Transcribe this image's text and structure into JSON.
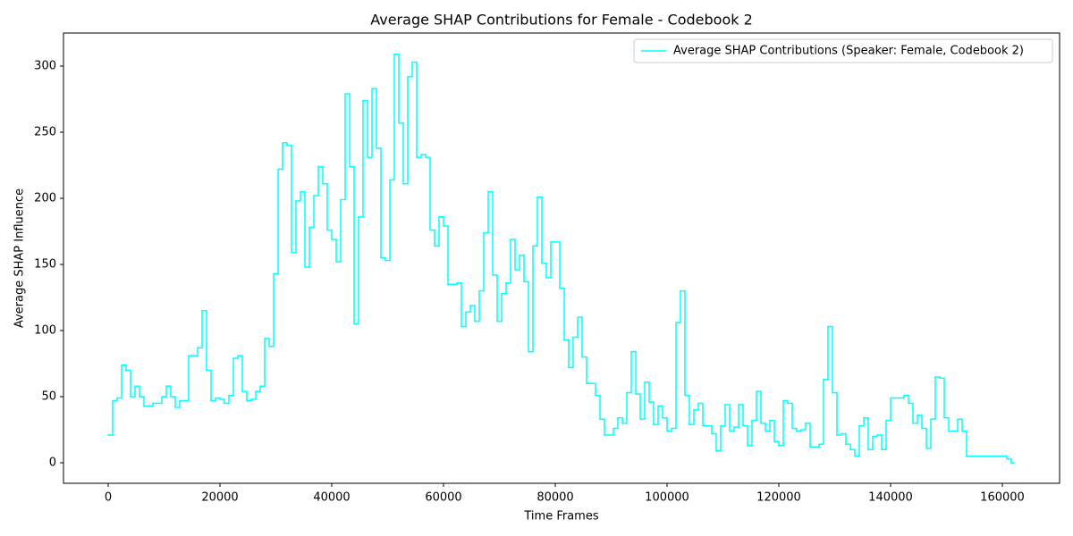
{
  "chart_data": {
    "type": "step",
    "title": "Average SHAP Contributions for Female - Codebook 2",
    "xlabel": "Time Frames",
    "ylabel": "Average SHAP Influence",
    "legend": "upper right",
    "grid": false,
    "xlim": [
      -8000,
      170240
    ],
    "ylim": [
      -15.5,
      325
    ],
    "xticks": [
      0,
      20000,
      40000,
      60000,
      80000,
      100000,
      120000,
      140000,
      160000
    ],
    "yticks": [
      0,
      50,
      100,
      150,
      200,
      250,
      300
    ],
    "series": [
      {
        "name": "Average SHAP Contributions (Speaker: Female, Codebook 2)",
        "color": "#00ffff",
        "x": [
          0,
          800,
          1600,
          2400,
          3200,
          4000,
          4800,
          5600,
          6400,
          8000,
          9600,
          10400,
          11200,
          12000,
          12800,
          14400,
          16000,
          16800,
          17600,
          18400,
          19200,
          20000,
          20800,
          21600,
          22400,
          23200,
          24000,
          24800,
          25600,
          26400,
          27200,
          28000,
          28800,
          29600,
          30400,
          31200,
          32000,
          32800,
          33600,
          34400,
          35200,
          36000,
          36800,
          37600,
          38400,
          39200,
          40000,
          40800,
          41600,
          42400,
          43200,
          44000,
          44800,
          45600,
          46400,
          47200,
          48000,
          48800,
          49600,
          50400,
          51200,
          52000,
          52800,
          53600,
          54400,
          55200,
          56000,
          56800,
          57600,
          58400,
          59200,
          60000,
          60800,
          62400,
          63200,
          64000,
          64800,
          65600,
          66400,
          67200,
          68000,
          68800,
          69600,
          70400,
          71200,
          72000,
          72800,
          73600,
          74400,
          75200,
          76000,
          76800,
          77600,
          78400,
          79200,
          80800,
          81600,
          82400,
          83200,
          84000,
          84800,
          85600,
          87200,
          88000,
          88800,
          90400,
          91200,
          92000,
          92800,
          93600,
          94400,
          95200,
          96000,
          96800,
          97600,
          98400,
          99200,
          100000,
          100800,
          101600,
          102400,
          103200,
          104000,
          104800,
          105600,
          106400,
          108000,
          108800,
          109600,
          110400,
          111200,
          112000,
          112800,
          113600,
          114400,
          115200,
          116000,
          116800,
          117600,
          118400,
          119200,
          120000,
          120800,
          121600,
          122400,
          123200,
          124000,
          124800,
          125600,
          127200,
          128000,
          128800,
          129600,
          130400,
          131200,
          132000,
          132800,
          133600,
          134400,
          135200,
          136000,
          136800,
          137600,
          138400,
          139200,
          140000,
          142400,
          143200,
          144000,
          144800,
          145600,
          146400,
          147200,
          148000,
          148800,
          149600,
          150400,
          152000,
          152800,
          153600,
          160800,
          161600,
          162080
        ],
        "values": [
          21,
          47,
          49,
          74,
          70,
          50,
          58,
          50,
          43,
          45,
          50,
          58,
          50,
          42,
          47,
          81,
          87,
          115,
          70,
          47,
          49,
          48,
          45,
          51,
          79,
          81,
          54,
          47,
          48,
          54,
          58,
          94,
          88,
          143,
          222,
          242,
          240,
          159,
          198,
          205,
          148,
          178,
          202,
          224,
          211,
          176,
          169,
          152,
          199,
          279,
          224,
          105,
          186,
          274,
          231,
          283,
          238,
          155,
          153,
          214,
          309,
          257,
          211,
          292,
          303,
          231,
          233,
          231,
          176,
          164,
          186,
          179,
          135,
          136,
          103,
          114,
          119,
          107,
          130,
          174,
          205,
          142,
          107,
          128,
          136,
          169,
          146,
          157,
          137,
          84,
          164,
          201,
          151,
          140,
          167,
          132,
          93,
          72,
          95,
          110,
          80,
          60,
          51,
          33,
          21,
          26,
          34,
          30,
          53,
          84,
          52,
          33,
          61,
          46,
          29,
          43,
          34,
          24,
          26,
          106,
          130,
          51,
          29,
          40,
          45,
          28,
          22,
          9,
          28,
          44,
          24,
          27,
          44,
          28,
          13,
          32,
          54,
          30,
          24,
          32,
          16,
          13,
          47,
          45,
          26,
          24,
          25,
          30,
          12,
          14,
          63,
          103,
          53,
          21,
          22,
          14,
          10,
          5,
          28,
          34,
          10,
          20,
          21,
          10,
          32,
          49,
          51,
          45,
          30,
          36,
          26,
          11,
          33,
          65,
          64,
          34,
          24,
          33,
          24,
          5,
          3,
          0,
          0
        ]
      }
    ]
  }
}
